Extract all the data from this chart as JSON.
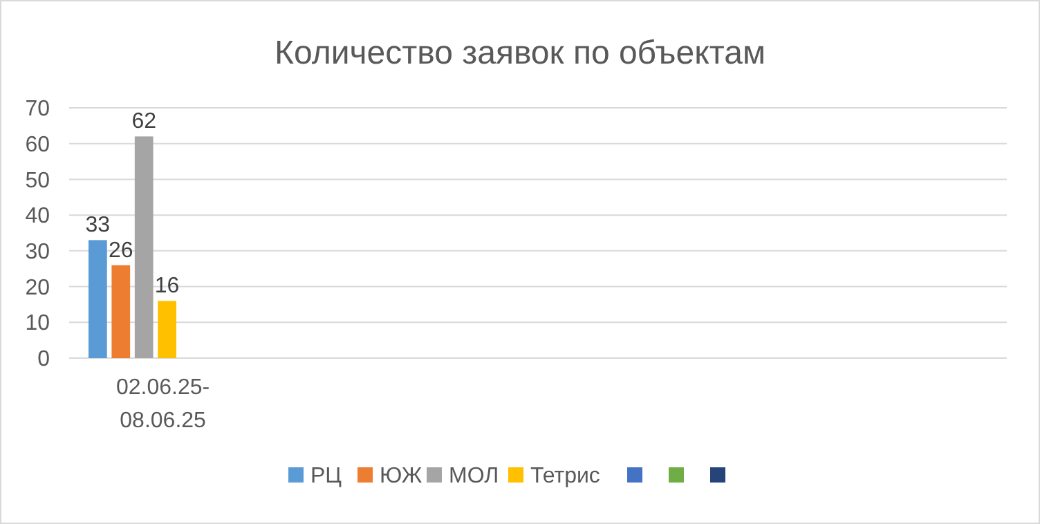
{
  "chart_data": {
    "type": "bar",
    "title": "Количество заявок по объектам",
    "categories": [
      "02.06.25-08.06.25",
      null,
      null,
      null,
      null
    ],
    "series": [
      {
        "name": "РЦ",
        "color": "#5b9bd5",
        "values": [
          33,
          null,
          null,
          null,
          null
        ]
      },
      {
        "name": "ЮЖ",
        "color": "#ed7d31",
        "values": [
          26,
          null,
          null,
          null,
          null
        ]
      },
      {
        "name": "МОЛ",
        "color": "#a5a5a5",
        "values": [
          62,
          null,
          null,
          null,
          null
        ]
      },
      {
        "name": "Тетрис",
        "color": "#ffc000",
        "values": [
          16,
          null,
          null,
          null,
          null
        ]
      },
      {
        "color": "#4472c4",
        "values": [
          null,
          null,
          null,
          null,
          null
        ]
      },
      {
        "color": "#70ad47",
        "values": [
          null,
          null,
          null,
          null,
          null
        ]
      },
      {
        "color": "#264478",
        "values": [
          null,
          null,
          null,
          null,
          null
        ]
      }
    ],
    "ylim": [
      0,
      70
    ],
    "yticks": [
      0,
      10,
      20,
      30,
      40,
      50,
      60,
      70
    ],
    "grid": "y",
    "legend": "bottom",
    "data_labels": true
  }
}
